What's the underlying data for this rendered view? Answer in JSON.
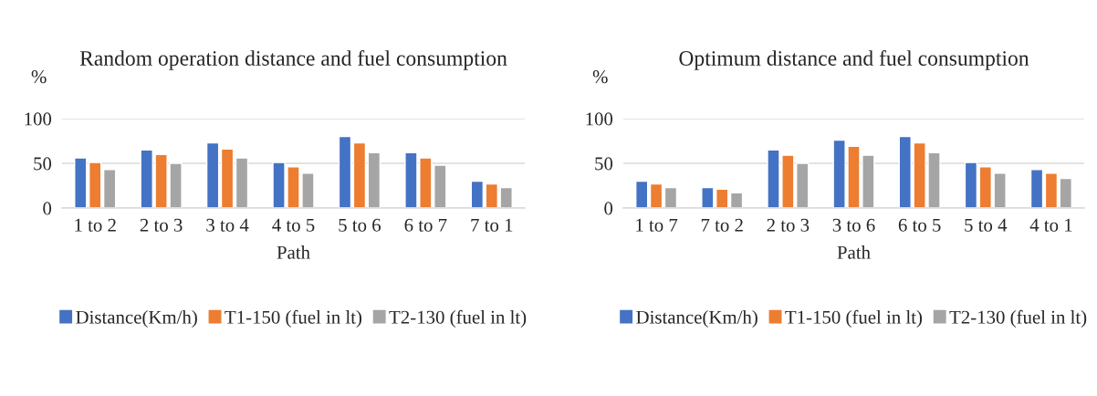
{
  "chart_data": [
    {
      "type": "bar",
      "title": "Random operation distance and fuel consumption",
      "xlabel": "Path",
      "ylabel": "%",
      "categories": [
        "1 to 2",
        "2 to 3",
        "3 to 4",
        "4 to 5",
        "5 to 6",
        "6 to 7",
        "7 to 1"
      ],
      "series": [
        {
          "name": "Distance(Km/h)",
          "color": "#4472c4",
          "values": [
            56,
            65,
            73,
            51,
            80,
            62,
            30
          ]
        },
        {
          "name": "T1-150 (fuel in lt)",
          "color": "#ed7d31",
          "values": [
            51,
            60,
            66,
            46,
            73,
            56,
            27
          ]
        },
        {
          "name": "T2-130 (fuel in lt)",
          "color": "#a5a5a5",
          "values": [
            43,
            50,
            56,
            39,
            62,
            48,
            23
          ]
        }
      ],
      "ylim": [
        0,
        100
      ],
      "yticks": [
        0,
        50,
        100
      ],
      "grid": "y",
      "legend": "bottom"
    },
    {
      "type": "bar",
      "title": "Optimum distance and fuel consumption",
      "xlabel": "Path",
      "ylabel": "%",
      "categories": [
        "1 to 7",
        "7 to 2",
        "2 to 3",
        "3 to 6",
        "6 to 5",
        "5 to 4",
        "4 to 1"
      ],
      "series": [
        {
          "name": "Distance(Km/h)",
          "color": "#4472c4",
          "values": [
            30,
            23,
            65,
            76,
            80,
            51,
            43
          ]
        },
        {
          "name": "T1-150 (fuel in lt)",
          "color": "#ed7d31",
          "values": [
            27,
            21,
            59,
            69,
            73,
            46,
            39
          ]
        },
        {
          "name": "T2-130 (fuel in lt)",
          "color": "#a5a5a5",
          "values": [
            23,
            17,
            50,
            59,
            62,
            39,
            33
          ]
        }
      ],
      "ylim": [
        0,
        100
      ],
      "yticks": [
        0,
        50,
        100
      ],
      "grid": "y",
      "legend": "bottom"
    }
  ]
}
